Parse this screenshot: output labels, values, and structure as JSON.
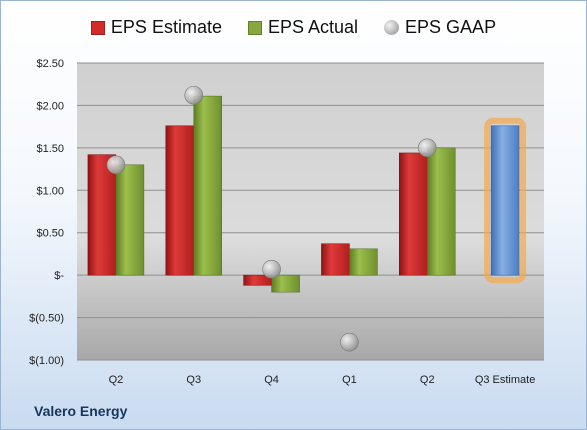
{
  "company": "Valero Energy",
  "colors": {
    "estimate": "#d42a2a",
    "actual": "#86a83e",
    "gaap": "#b4b4b4",
    "projected": "#6f9ad6",
    "projected_glow": "#f5a94b"
  },
  "chart_data": {
    "type": "bar",
    "categories": [
      "Q2",
      "Q3",
      "Q4",
      "Q1",
      "Q2",
      "Q3 Estimate"
    ],
    "series": [
      {
        "name": "EPS Estimate",
        "values": [
          1.42,
          1.76,
          -0.12,
          0.37,
          1.44,
          null
        ]
      },
      {
        "name": "EPS Actual",
        "values": [
          1.3,
          2.11,
          -0.2,
          0.31,
          1.5,
          null
        ]
      },
      {
        "name": "EPS GAAP",
        "values": [
          1.3,
          2.12,
          0.07,
          -0.79,
          1.5,
          null
        ]
      }
    ],
    "projected": {
      "category": "Q3 Estimate",
      "value": 1.76
    },
    "ylim": [
      -1.0,
      2.5
    ],
    "yticks": [
      2.5,
      2.0,
      1.5,
      1.0,
      0.5,
      0.0,
      -0.5,
      -1.0
    ],
    "ytick_labels": [
      "$2.50",
      "$2.00",
      "$1.50",
      "$1.00",
      "$0.50",
      "$-",
      "$(0.50)",
      "$(1.00)"
    ],
    "grid": true,
    "legend": "top-center"
  }
}
